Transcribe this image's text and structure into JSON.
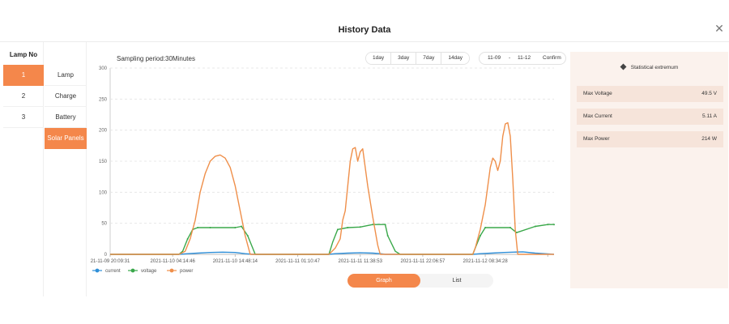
{
  "dialog": {
    "title": "History Data"
  },
  "lamp_list": {
    "header": "Lamp No",
    "items": [
      {
        "label": "1",
        "active": true
      },
      {
        "label": "2",
        "active": false
      },
      {
        "label": "3",
        "active": false
      }
    ]
  },
  "data_types": [
    {
      "label": "Lamp",
      "active": false
    },
    {
      "label": "Charge",
      "active": false
    },
    {
      "label": "Battery",
      "active": false
    },
    {
      "label": "Solar Panels",
      "active": true
    }
  ],
  "sampling": "Sampling period:30Minutes",
  "ranges": [
    "1day",
    "3day",
    "7day",
    "14day"
  ],
  "date_range": {
    "start": "11-09",
    "separator": "-",
    "end": "11-12",
    "confirm": "Confirm"
  },
  "stats": {
    "title": "Statistical extremum",
    "rows": [
      {
        "label": "Max Voltage",
        "value": "49.5 V"
      },
      {
        "label": "Max Current",
        "value": "5.11 A"
      },
      {
        "label": "Max Power",
        "value": "214 W"
      }
    ]
  },
  "view_toggle": {
    "graph": "Graph",
    "list": "List",
    "active": "graph"
  },
  "colors": {
    "accent": "#f4874b",
    "current": "#2f8fd8",
    "voltage": "#3aa84a",
    "power": "#ef8f4a"
  },
  "chart_data": {
    "type": "line",
    "ylim": [
      0,
      300
    ],
    "yticks": [
      0,
      50,
      100,
      150,
      200,
      250,
      300
    ],
    "xticks": [
      0,
      50,
      100,
      150,
      200,
      250,
      300,
      350
    ],
    "xlim": [
      0,
      355
    ],
    "xtick_labels": [
      "21-11-09 20:09:31",
      "2021-11-10 04:14:46",
      "2021-11-10 14:48:14",
      "2021-11-11 01:10:47",
      "2021-11-11 11:38:53",
      "2021-11-11 22:06:57",
      "2021-11-12 08:34:28",
      ""
    ],
    "series": [
      {
        "name": "current",
        "color": "#2f8fd8",
        "x": [
          0,
          55,
          62,
          70,
          80,
          90,
          100,
          108,
          114,
          175,
          180,
          190,
          200,
          210,
          216,
          220,
          290,
          296,
          305,
          315,
          322,
          330,
          340,
          355
        ],
        "y": [
          0,
          0,
          1,
          2,
          3,
          3.5,
          3,
          1,
          0,
          0,
          1,
          2,
          2.5,
          2,
          1,
          0,
          0,
          1,
          2,
          3,
          3.5,
          4,
          2,
          0
        ]
      },
      {
        "name": "voltage",
        "color": "#3aa84a",
        "x": [
          0,
          55,
          58,
          62,
          66,
          70,
          80,
          100,
          105,
          110,
          116,
          175,
          178,
          182,
          190,
          200,
          210,
          220,
          222,
          228,
          232,
          290,
          292,
          296,
          300,
          320,
          325,
          340,
          350,
          355
        ],
        "y": [
          0,
          0,
          5,
          25,
          40,
          43,
          43,
          43,
          45,
          30,
          0,
          0,
          20,
          40,
          43,
          44,
          48,
          48,
          30,
          5,
          0,
          0,
          10,
          30,
          43,
          43,
          35,
          45,
          48,
          48
        ],
        "markers": true
      },
      {
        "name": "power",
        "color": "#ef8f4a",
        "x": [
          0,
          55,
          60,
          64,
          68,
          72,
          76,
          80,
          84,
          88,
          92,
          96,
          100,
          104,
          108,
          112,
          175,
          180,
          184,
          186,
          188,
          190,
          192,
          194,
          196,
          198,
          200,
          202,
          206,
          210,
          214,
          216,
          290,
          292,
          296,
          300,
          302,
          304,
          306,
          308,
          310,
          312,
          314,
          316,
          318,
          320,
          322,
          324,
          326,
          355
        ],
        "y": [
          0,
          0,
          5,
          25,
          55,
          100,
          130,
          150,
          158,
          160,
          155,
          140,
          110,
          70,
          30,
          0,
          0,
          10,
          25,
          55,
          70,
          110,
          150,
          170,
          172,
          150,
          165,
          170,
          110,
          60,
          15,
          0,
          0,
          10,
          40,
          80,
          110,
          140,
          155,
          150,
          135,
          150,
          190,
          210,
          212,
          190,
          120,
          40,
          0,
          0
        ]
      }
    ],
    "legend": [
      "current",
      "voltage",
      "power"
    ],
    "grid": true
  }
}
